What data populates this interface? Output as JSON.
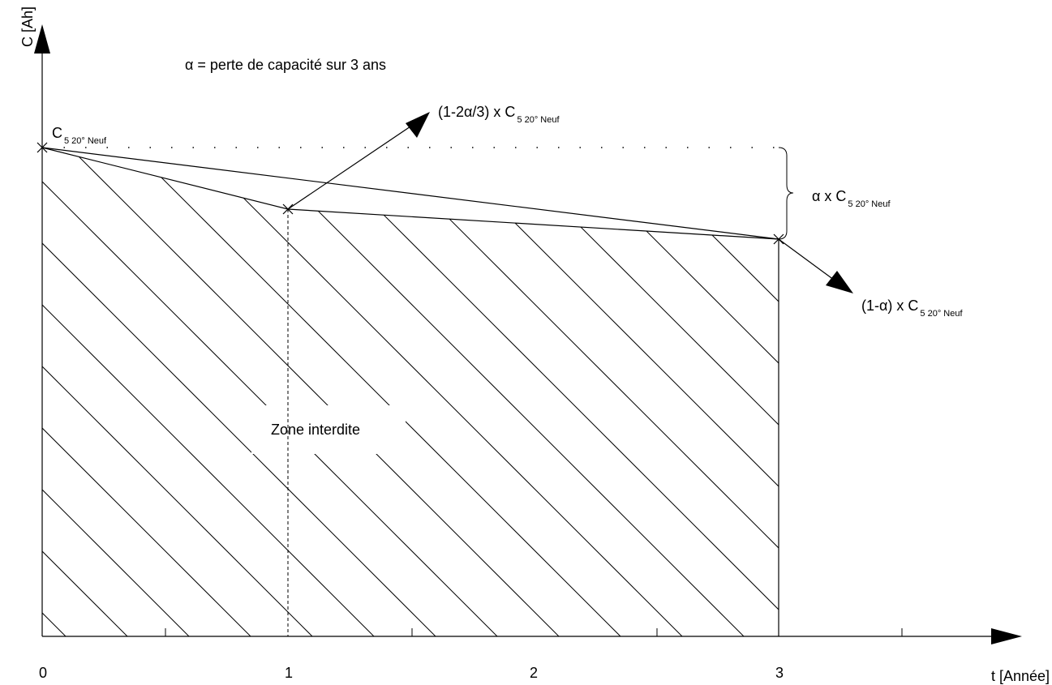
{
  "axes": {
    "y_label": "C [Ah]",
    "x_label": "t [Année]",
    "x_ticks": [
      "0",
      "1",
      "2",
      "3"
    ]
  },
  "legend": "α = perte de capacité sur 3 ans",
  "labels": {
    "c_new_main": "C",
    "c_new_sub": "5 20° Neuf",
    "mid_point_main": "(1-2α/3) x C",
    "mid_point_sub": "5 20° Neuf",
    "end_point_main": "(1-α) x C",
    "end_point_sub": "5 20° Neuf",
    "delta_main": "α x C",
    "delta_sub": "5 20° Neuf",
    "zone": "Zone interdite"
  },
  "colors": {
    "ink": "#000000",
    "background": "#ffffff"
  }
}
